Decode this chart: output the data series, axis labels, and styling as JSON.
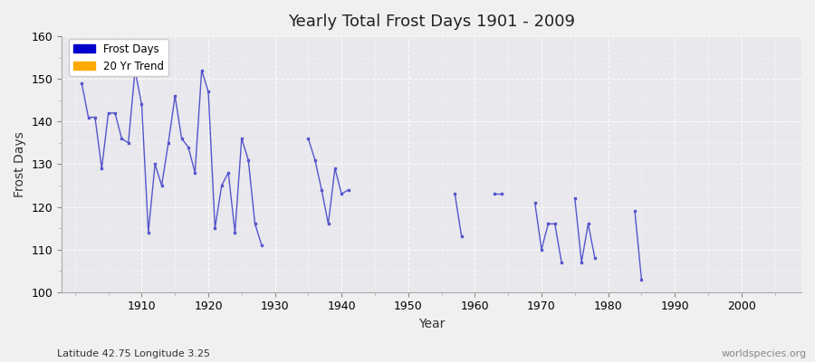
{
  "title": "Yearly Total Frost Days 1901 - 2009",
  "xlabel": "Year",
  "ylabel": "Frost Days",
  "xlim": [
    1898,
    2009
  ],
  "ylim": [
    100,
    160
  ],
  "yticks": [
    100,
    110,
    120,
    130,
    140,
    150,
    160
  ],
  "xticks": [
    1910,
    1920,
    1930,
    1940,
    1950,
    1960,
    1970,
    1980,
    1990,
    2000
  ],
  "bg_color": "#f0f0f0",
  "plot_bg_color": "#e8e8ed",
  "line_color": "#5555cc",
  "legend_labels": [
    "Frost Days",
    "20 Yr Trend"
  ],
  "legend_colors": [
    "#0000cc",
    "#ffaa00"
  ],
  "watermark": "worldspecies.org",
  "subtitle": "Latitude 42.75 Longitude 3.25",
  "segments": [
    {
      "years": [
        1901,
        1902,
        1903,
        1904,
        1905,
        1906,
        1907,
        1908,
        1909,
        1910,
        1911,
        1912,
        1913,
        1914,
        1915,
        1916,
        1917,
        1918,
        1919,
        1920,
        1921,
        1922,
        1923,
        1924,
        1925,
        1926,
        1927,
        1928
      ],
      "values": [
        149,
        141,
        141,
        129,
        142,
        142,
        136,
        135,
        152,
        144,
        114,
        130,
        125,
        135,
        146,
        136,
        134,
        128,
        152,
        147,
        115,
        125,
        128,
        114,
        136,
        131,
        116,
        111
      ]
    },
    {
      "years": [
        1935,
        1936,
        1937,
        1938,
        1939,
        1940,
        1941
      ],
      "values": [
        136,
        131,
        124,
        116,
        129,
        123,
        124
      ]
    },
    {
      "years": [
        1957,
        1958
      ],
      "values": [
        123,
        113
      ]
    },
    {
      "years": [
        1963,
        1964
      ],
      "values": [
        123,
        123
      ]
    },
    {
      "years": [
        1969,
        1970,
        1971,
        1972,
        1973
      ],
      "values": [
        121,
        110,
        116,
        116,
        107
      ]
    },
    {
      "years": [
        1975,
        1976,
        1977,
        1978
      ],
      "values": [
        122,
        107,
        116,
        108
      ]
    },
    {
      "years": [
        1984,
        1985
      ],
      "values": [
        119,
        103
      ]
    }
  ]
}
